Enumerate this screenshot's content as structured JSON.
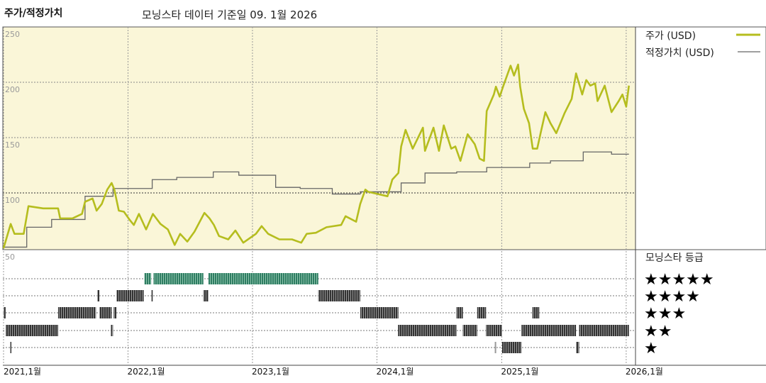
{
  "header": {
    "title": "주가/적정가치",
    "subtitle": "모닝스타 데이터 기준일 09. 1월 2026"
  },
  "legend": {
    "price_label": "주가 (USD)",
    "fair_value_label": "적정가치 (USD)",
    "rating_title": "모닝스타 등급"
  },
  "colors": {
    "price": "#b5bd1e",
    "fair_value": "#666666",
    "plot_bg": "#faf6d8",
    "rating_5": "#2e7d62",
    "rating_other": "#333333"
  },
  "chart_data": [
    {
      "type": "line",
      "ylim": [
        50,
        250
      ],
      "yticks": [
        "250",
        "200",
        "150",
        "100",
        "50"
      ],
      "ytick_values": [
        250,
        200,
        150,
        100,
        50
      ],
      "xlim": [
        "2021-01-01",
        "2026-01-20"
      ],
      "xticks": [
        "2021,1월",
        "2022,1월",
        "2023,1월",
        "2024,1월",
        "2025,1월",
        "2026,1월"
      ],
      "xtick_dates": [
        "2021-01-01",
        "2022-01-01",
        "2023-01-01",
        "2024-01-01",
        "2025-01-01",
        "2026-01-01"
      ],
      "grid": true,
      "legend_position": "right",
      "series": [
        {
          "name": "주가 (USD)",
          "style": "line",
          "points": [
            [
              "2021-01-01",
              50
            ],
            [
              "2021-01-22",
              72
            ],
            [
              "2021-02-02",
              63
            ],
            [
              "2021-03-01",
              63
            ],
            [
              "2021-03-15",
              88
            ],
            [
              "2021-04-27",
              86
            ],
            [
              "2021-06-10",
              86
            ],
            [
              "2021-06-16",
              77
            ],
            [
              "2021-07-22",
              77
            ],
            [
              "2021-08-19",
              81
            ],
            [
              "2021-08-28",
              92
            ],
            [
              "2021-09-19",
              95
            ],
            [
              "2021-10-01",
              84
            ],
            [
              "2021-10-16",
              90
            ],
            [
              "2021-11-01",
              103
            ],
            [
              "2021-11-14",
              109
            ],
            [
              "2021-11-22",
              103
            ],
            [
              "2021-12-05",
              84
            ],
            [
              "2021-12-20",
              83
            ],
            [
              "2022-01-05",
              76
            ],
            [
              "2022-01-18",
              71
            ],
            [
              "2022-02-02",
              81
            ],
            [
              "2022-02-23",
              67
            ],
            [
              "2022-03-15",
              81
            ],
            [
              "2022-04-06",
              72
            ],
            [
              "2022-04-28",
              67
            ],
            [
              "2022-05-18",
              53
            ],
            [
              "2022-06-03",
              63
            ],
            [
              "2022-06-24",
              56
            ],
            [
              "2022-07-15",
              65
            ],
            [
              "2022-08-13",
              82
            ],
            [
              "2022-08-28",
              77
            ],
            [
              "2022-09-10",
              71
            ],
            [
              "2022-09-25",
              61
            ],
            [
              "2022-10-22",
              58
            ],
            [
              "2022-11-12",
              66
            ],
            [
              "2022-12-05",
              55
            ],
            [
              "2023-01-11",
              63
            ],
            [
              "2023-01-28",
              70
            ],
            [
              "2023-02-16",
              63
            ],
            [
              "2023-03-21",
              58
            ],
            [
              "2023-04-27",
              58
            ],
            [
              "2023-05-24",
              55
            ],
            [
              "2023-06-09",
              63
            ],
            [
              "2023-07-06",
              64
            ],
            [
              "2023-08-06",
              69
            ],
            [
              "2023-09-18",
              71
            ],
            [
              "2023-10-01",
              79
            ],
            [
              "2023-11-01",
              74
            ],
            [
              "2023-11-13",
              90
            ],
            [
              "2023-11-28",
              103
            ],
            [
              "2023-12-06",
              101
            ],
            [
              "2024-02-01",
              97
            ],
            [
              "2024-02-15",
              112
            ],
            [
              "2024-03-04",
              118
            ],
            [
              "2024-03-12",
              142
            ],
            [
              "2024-03-25",
              157
            ],
            [
              "2024-04-15",
              140
            ],
            [
              "2024-05-15",
              159
            ],
            [
              "2024-05-21",
              138
            ],
            [
              "2024-06-15",
              159
            ],
            [
              "2024-07-01",
              138
            ],
            [
              "2024-07-15",
              161
            ],
            [
              "2024-08-06",
              140
            ],
            [
              "2024-08-18",
              142
            ],
            [
              "2024-09-02",
              129
            ],
            [
              "2024-09-23",
              153
            ],
            [
              "2024-10-14",
              144
            ],
            [
              "2024-10-28",
              131
            ],
            [
              "2024-11-10",
              129
            ],
            [
              "2024-11-18",
              174
            ],
            [
              "2024-12-09",
              189
            ],
            [
              "2024-12-15",
              196
            ],
            [
              "2024-12-26",
              187
            ],
            [
              "2025-01-06",
              197
            ],
            [
              "2025-01-27",
              215
            ],
            [
              "2025-02-06",
              206
            ],
            [
              "2025-02-18",
              216
            ],
            [
              "2025-02-24",
              196
            ],
            [
              "2025-03-07",
              176
            ],
            [
              "2025-03-22",
              163
            ],
            [
              "2025-04-02",
              140
            ],
            [
              "2025-04-15",
              140
            ],
            [
              "2025-04-25",
              154
            ],
            [
              "2025-05-09",
              173
            ],
            [
              "2025-05-24",
              163
            ],
            [
              "2025-06-10",
              154
            ],
            [
              "2025-07-04",
              172
            ],
            [
              "2025-07-25",
              185
            ],
            [
              "2025-08-07",
              208
            ],
            [
              "2025-08-25",
              189
            ],
            [
              "2025-09-06",
              202
            ],
            [
              "2025-09-18",
              197
            ],
            [
              "2025-10-02",
              199
            ],
            [
              "2025-10-09",
              183
            ],
            [
              "2025-10-30",
              197
            ],
            [
              "2025-11-19",
              173
            ],
            [
              "2025-12-10",
              183
            ],
            [
              "2025-12-21",
              189
            ],
            [
              "2026-01-01",
              178
            ],
            [
              "2026-01-09",
              197
            ]
          ]
        },
        {
          "name": "적정가치 (USD)",
          "style": "step",
          "points": [
            [
              "2021-01-01",
              51
            ],
            [
              "2021-03-10",
              69
            ],
            [
              "2021-05-22",
              76
            ],
            [
              "2021-08-28",
              97
            ],
            [
              "2021-11-18",
              104
            ],
            [
              "2022-03-13",
              112
            ],
            [
              "2022-05-24",
              114
            ],
            [
              "2022-09-08",
              119
            ],
            [
              "2022-11-22",
              116
            ],
            [
              "2023-03-10",
              105
            ],
            [
              "2023-05-21",
              104
            ],
            [
              "2023-08-23",
              99
            ],
            [
              "2023-11-13",
              101
            ],
            [
              "2024-03-12",
              109
            ],
            [
              "2024-05-21",
              118
            ],
            [
              "2024-08-22",
              119
            ],
            [
              "2024-11-18",
              123
            ],
            [
              "2025-03-24",
              127
            ],
            [
              "2025-05-24",
              129
            ],
            [
              "2025-08-28",
              137
            ],
            [
              "2025-11-19",
              135
            ],
            [
              "2026-01-09",
              135
            ]
          ]
        }
      ]
    },
    {
      "type": "timeline",
      "title": "모닝스타 등급",
      "categories": [
        "★★★★★",
        "★★★★",
        "★★★",
        "★★",
        "★"
      ],
      "ratings": [
        {
          "stars": 5,
          "periods": [
            [
              "2022-02-18",
              "2022-03-10"
            ],
            [
              "2022-03-17",
              "2022-08-10"
            ],
            [
              "2022-08-25",
              "2023-07-13"
            ]
          ]
        },
        {
          "stars": 4,
          "periods": [
            [
              "2021-10-03",
              "2021-10-09"
            ],
            [
              "2021-11-28",
              "2022-02-16"
            ],
            [
              "2022-03-11",
              "2022-03-15"
            ],
            [
              "2022-08-10",
              "2022-08-25"
            ],
            [
              "2023-07-13",
              "2023-11-13"
            ]
          ]
        },
        {
          "stars": 3,
          "periods": [
            [
              "2021-01-01",
              "2021-01-07"
            ],
            [
              "2021-06-10",
              "2021-09-29"
            ],
            [
              "2021-10-09",
              "2021-11-14"
            ],
            [
              "2021-11-20",
              "2021-11-28"
            ],
            [
              "2023-11-13",
              "2024-03-04"
            ],
            [
              "2024-08-21",
              "2024-09-09"
            ],
            [
              "2024-10-21",
              "2024-11-16"
            ],
            [
              "2025-04-01",
              "2025-04-21"
            ]
          ]
        },
        {
          "stars": 2,
          "periods": [
            [
              "2021-01-07",
              "2021-06-10"
            ],
            [
              "2021-11-12",
              "2021-11-18"
            ],
            [
              "2024-03-03",
              "2024-08-21"
            ],
            [
              "2024-09-09",
              "2024-10-21"
            ],
            [
              "2024-11-16",
              "2025-01-02"
            ],
            [
              "2025-02-28",
              "2025-08-07"
            ],
            [
              "2025-08-16",
              "2026-01-09"
            ]
          ]
        },
        {
          "stars": 1,
          "periods": [
            [
              "2021-01-20",
              "2021-01-24"
            ],
            [
              "2024-12-12",
              "2024-12-15"
            ],
            [
              "2025-01-02",
              "2025-02-28"
            ],
            [
              "2025-08-07",
              "2025-08-16"
            ]
          ]
        }
      ]
    }
  ]
}
